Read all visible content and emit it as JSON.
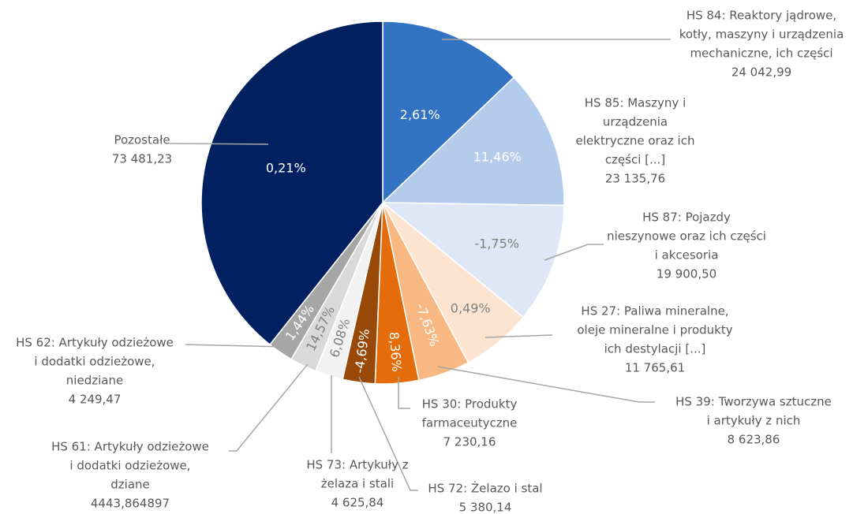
{
  "chart_data": {
    "type": "pie",
    "categories": [
      [
        "HS 84: Reaktory jądrowe,",
        "kotły, maszyny i urządzenia",
        "mechaniczne, ich części"
      ],
      [
        "HS 85: Maszyny i",
        "urządzenia",
        "elektryczne oraz ich",
        "części [...]"
      ],
      [
        "HS 87: Pojazdy",
        "nieszynowe oraz ich części",
        "i akcesoria"
      ],
      [
        "HS 27: Paliwa mineralne,",
        "oleje mineralne i produkty",
        "ich destylacji [...]"
      ],
      [
        "HS 39: Tworzywa sztuczne",
        "i artykuły z nich"
      ],
      [
        "HS 30: Produkty",
        "farmaceutyczne"
      ],
      [
        "HS 72: Żelazo i stal"
      ],
      [
        "HS 73: Artykuły z",
        "żelaza i stali"
      ],
      [
        "HS 61: Artykuły odzieżowe",
        "i dodatki odzieżowe,",
        "dziane"
      ],
      [
        "HS 62: Artykuły odzieżowe",
        "i dodatki odzieżowe,",
        "niedziane"
      ],
      [
        "Pozostałe"
      ]
    ],
    "values": [
      24042.99,
      23135.76,
      19900.5,
      11765.61,
      8623.86,
      7230.16,
      5380.14,
      4625.84,
      4443.864897,
      4249.47,
      73481.23
    ],
    "value_labels": [
      "24 042,99",
      "23 135,76",
      "19 900,50",
      "11 765,61",
      "8 623,86",
      "7 230,16",
      "5 380,14",
      "4 625,84",
      "4443,864897",
      "4 249,47",
      "73 481,23"
    ],
    "changes": [
      2.61,
      11.46,
      -1.75,
      0.49,
      -7.63,
      8.36,
      -4.69,
      6.08,
      14.57,
      1.44,
      0.21
    ],
    "change_labels": [
      "2,61%",
      "11,46%",
      "-1,75%",
      "0,49%",
      "-7,63%",
      "8,36%",
      "-4,69%",
      "6,08%",
      "14,57%",
      "1,44%",
      "0,21%"
    ],
    "colors": [
      "#3373c4",
      "#b4cbeb",
      "#dde7f6",
      "#fde4d0",
      "#f7b882",
      "#e46c0a",
      "#984807",
      "#f2f2f2",
      "#d9d9d9",
      "#a6a6a6",
      "#002060"
    ],
    "change_label_colors": [
      "#ffffff",
      "#ffffff",
      "#7f7f7f",
      "#7f7f7f",
      "#ffffff",
      "#ffffff",
      "#ffffff",
      "#7f7f7f",
      "#7f7f7f",
      "#ffffff",
      "#ffffff"
    ]
  }
}
